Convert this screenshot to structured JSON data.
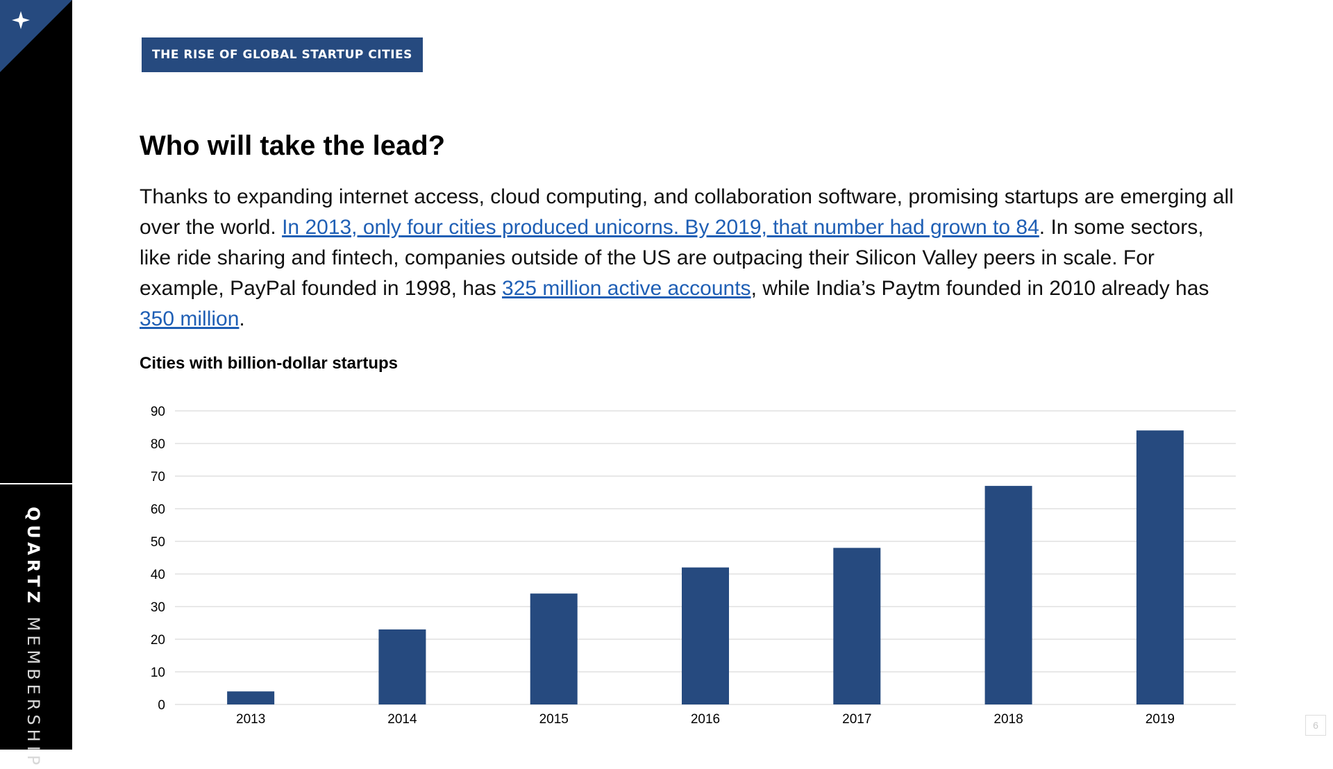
{
  "sidebar": {
    "brand_strong": "QUARTZ",
    "brand_light": "MEMBERSHIP",
    "corner_icon": "star-icon",
    "accent_color": "#264a7f"
  },
  "section_tag": "THE RISE OF GLOBAL STARTUP CITIES",
  "heading": "Who will take the lead?",
  "body": {
    "text_1": "Thanks to expanding internet access, cloud computing, and collaboration software, promising startups are emerging all over the world. ",
    "link_1": "In 2013, only four cities produced unicorns. By 2019, that number had grown to 84",
    "text_2": ". In some sectors, like ride sharing and fintech, companies outside of the US are outpacing their Silicon Valley peers in scale. For example, PayPal founded in 1998, has ",
    "link_2": "325 million active accounts",
    "text_3": ", while India’s Paytm founded in 2010 already has ",
    "link_3": "350 million",
    "text_4": "."
  },
  "chart_data": {
    "type": "bar",
    "title": "Cities with billion-dollar startups",
    "categories": [
      "2013",
      "2014",
      "2015",
      "2016",
      "2017",
      "2018",
      "2019"
    ],
    "values": [
      4,
      23,
      34,
      42,
      48,
      67,
      84
    ],
    "ylim": [
      0,
      90
    ],
    "yticks": [
      0,
      10,
      20,
      30,
      40,
      50,
      60,
      70,
      80,
      90
    ],
    "xlabel": "",
    "ylabel": "",
    "grid": true,
    "bar_color": "#264a7f",
    "grid_color": "#d9d9d9"
  },
  "page_number": "6"
}
